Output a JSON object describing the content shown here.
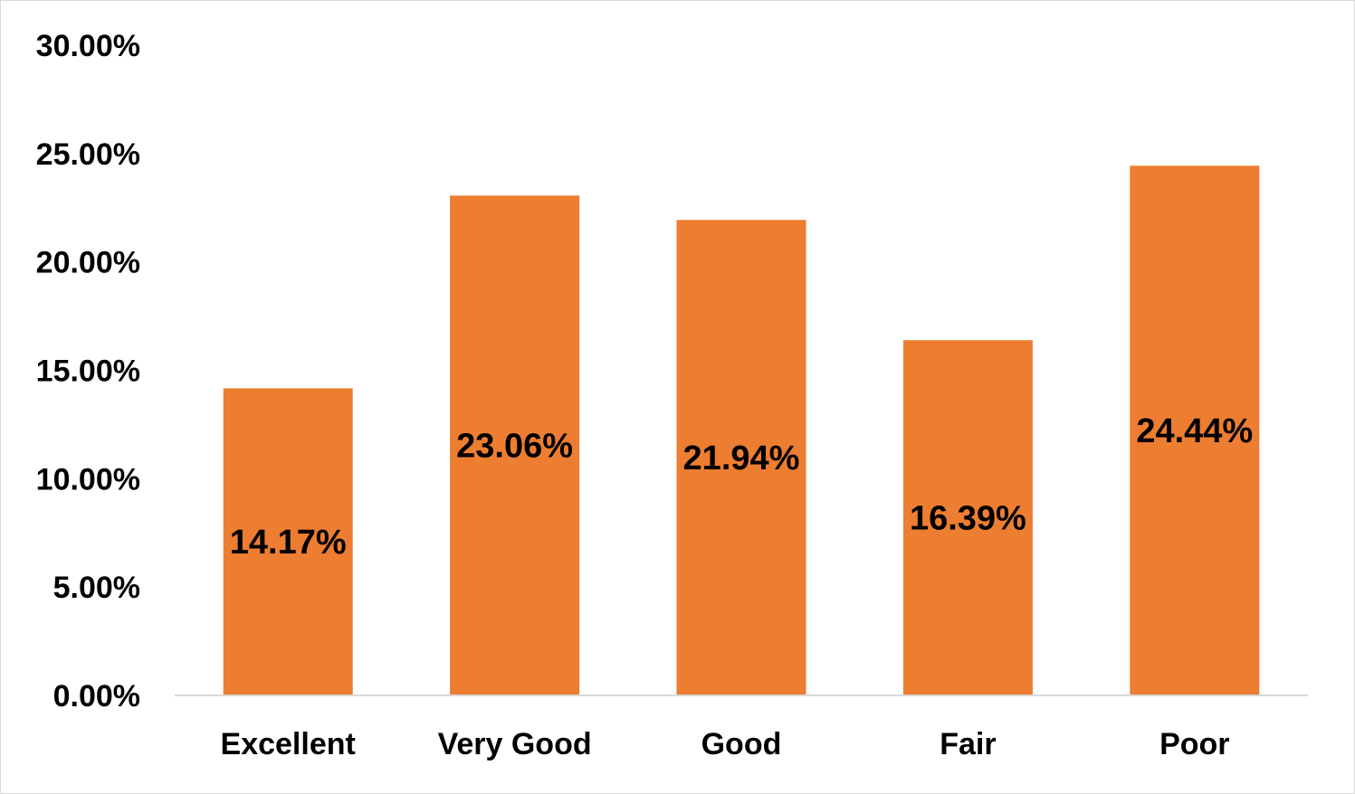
{
  "chart_data": {
    "type": "bar",
    "title": "",
    "xlabel": "",
    "ylabel": "",
    "categories": [
      "Excellent",
      "Very Good",
      "Good",
      "Fair",
      "Poor"
    ],
    "values": [
      14.17,
      23.06,
      21.94,
      16.39,
      24.44
    ],
    "data_labels": [
      "14.17%",
      "23.06%",
      "21.94%",
      "16.39%",
      "24.44%"
    ],
    "ylim": [
      0,
      30
    ],
    "y_ticks": [
      0,
      5,
      10,
      15,
      20,
      25,
      30
    ],
    "y_tick_labels": [
      "0.00%",
      "5.00%",
      "10.00%",
      "15.00%",
      "20.00%",
      "25.00%",
      "30.00%"
    ],
    "grid": false,
    "legend": "none",
    "bar_color": "#ED7D31",
    "axis_color": "#d9d9d9"
  }
}
